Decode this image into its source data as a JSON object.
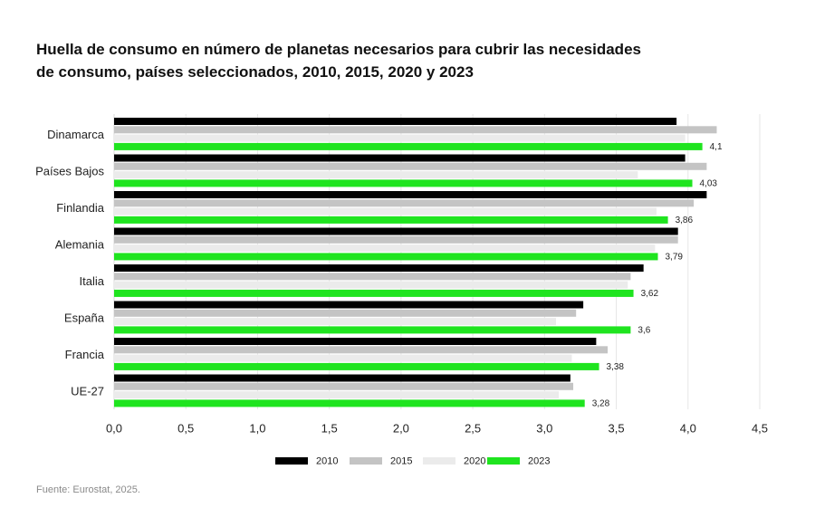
{
  "title_line1": "Huella de consumo en número de planetas necesarios para cubrir las necesidades",
  "title_line2": "de consumo, países seleccionados, 2010, 2015, 2020 y 2023",
  "source": "Fuente: Eurostat, 2025.",
  "chart_data": {
    "type": "bar",
    "orientation": "horizontal",
    "categories": [
      "Dinamarca",
      "Países Bajos",
      "Finlandia",
      "Alemania",
      "Italia",
      "España",
      "Francia",
      "UE-27"
    ],
    "highlight_category": "España",
    "series": [
      {
        "name": "2010",
        "color": "#000000",
        "values": [
          3.92,
          3.98,
          4.13,
          3.93,
          3.69,
          3.27,
          3.36,
          3.18
        ]
      },
      {
        "name": "2015",
        "color": "#c4c4c4",
        "values": [
          4.2,
          4.13,
          4.04,
          3.93,
          3.6,
          3.22,
          3.44,
          3.2
        ]
      },
      {
        "name": "2020",
        "color": "#ebebeb",
        "values": [
          3.98,
          3.65,
          3.78,
          3.77,
          3.58,
          3.08,
          3.19,
          3.1
        ]
      },
      {
        "name": "2023",
        "color": "#1fe41f",
        "values": [
          4.1,
          4.03,
          3.86,
          3.79,
          3.62,
          3.6,
          3.38,
          3.28
        ]
      }
    ],
    "data_labels_series": "2023",
    "data_labels": [
      "4,1",
      "4,03",
      "3,86",
      "3,79",
      "3,62",
      "3,6",
      "3,38",
      "3,28"
    ],
    "xlim": [
      0,
      4.5
    ],
    "xticks": [
      0,
      0.5,
      1.0,
      1.5,
      2.0,
      2.5,
      3.0,
      3.5,
      4.0,
      4.5
    ],
    "xtick_labels": [
      "0,0",
      "0,5",
      "1,0",
      "1,5",
      "2,0",
      "2,5",
      "3,0",
      "3,5",
      "4,0",
      "4,5"
    ],
    "grid": "vertical",
    "legend_position": "bottom",
    "colors": {
      "highlight_label": "#1fe41f",
      "grid": "#e6e6e6"
    }
  }
}
